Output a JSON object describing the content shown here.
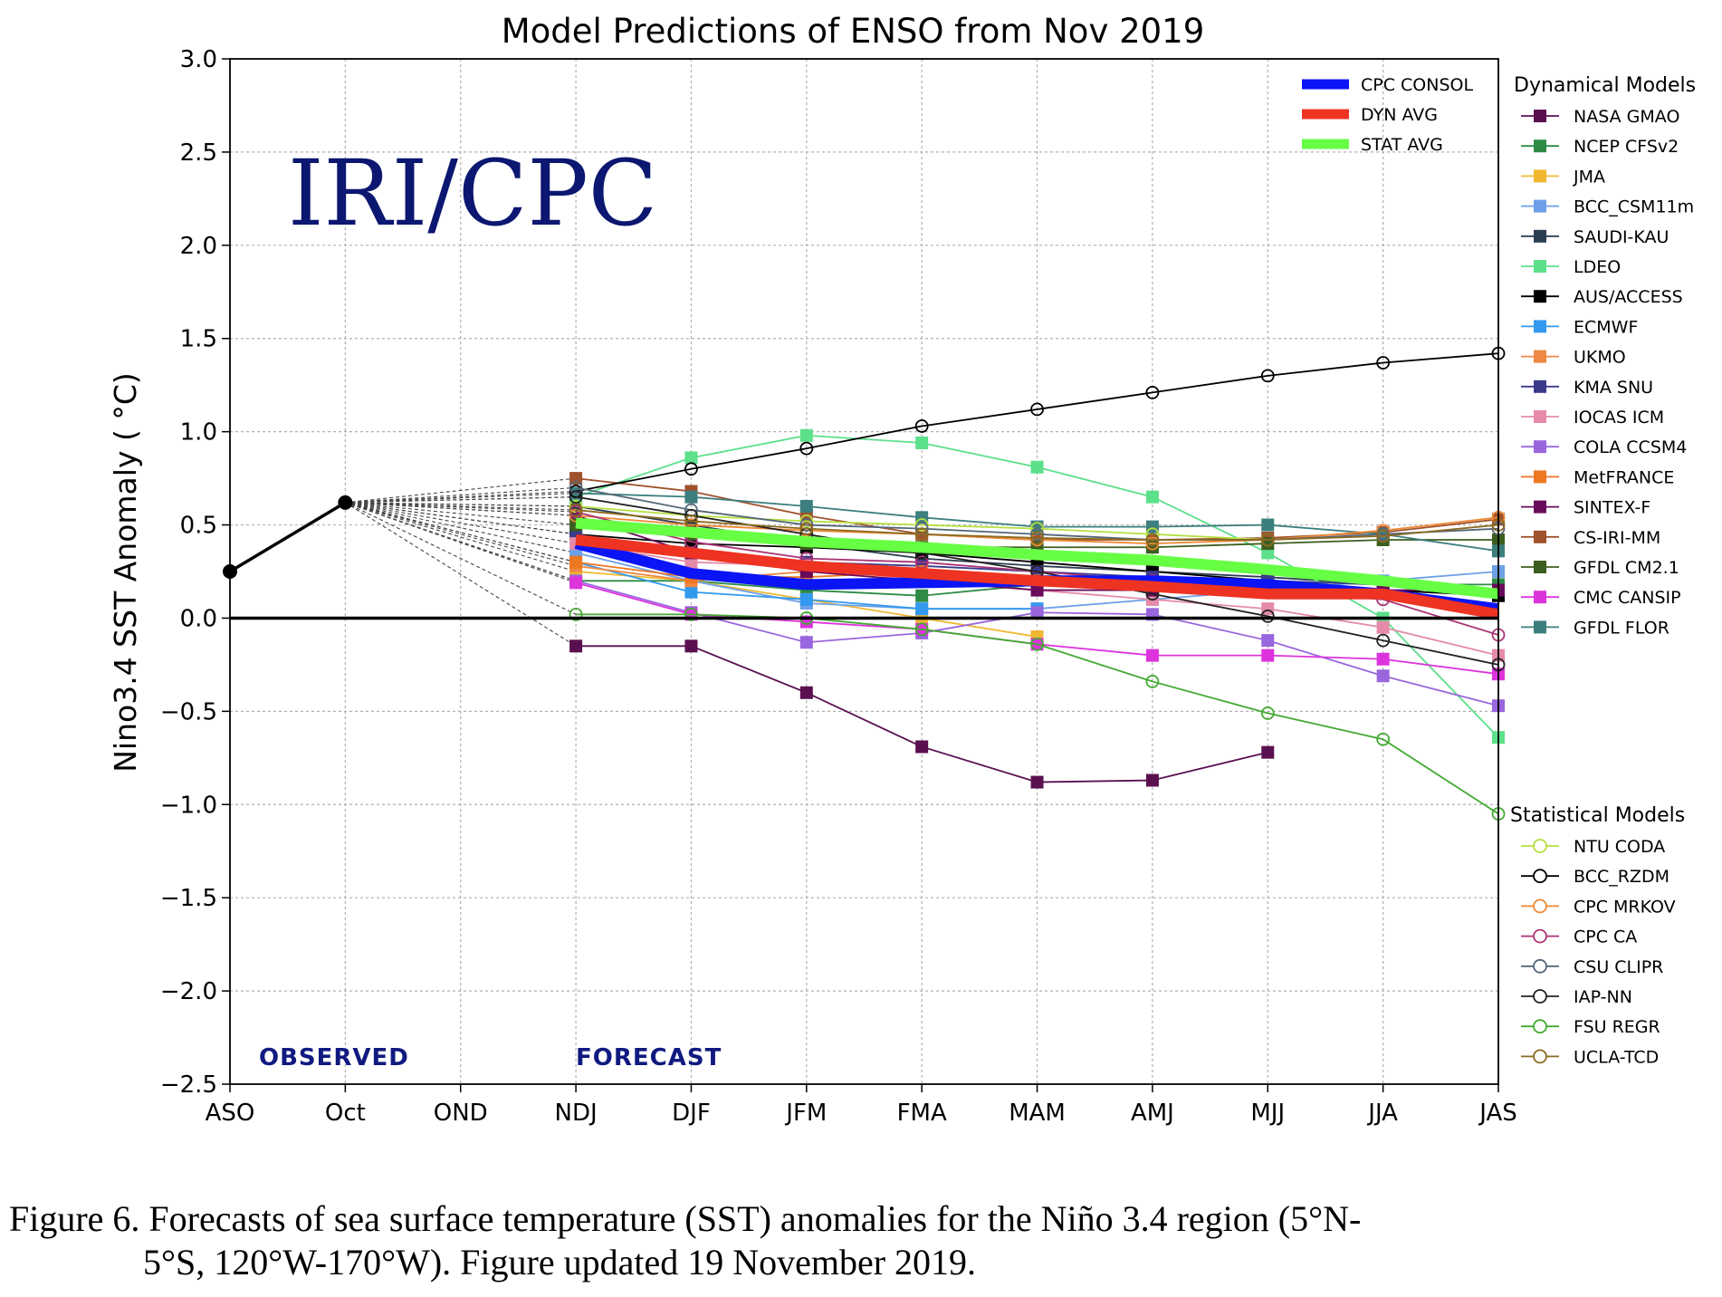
{
  "chart_data": {
    "type": "line",
    "title": "Model Predictions of ENSO from Nov 2019",
    "ylabel": "Nino3.4 SST Anomaly ( °C)",
    "xlabel": "",
    "categories": [
      "ASO",
      "Oct",
      "OND",
      "NDJ",
      "DJF",
      "JFM",
      "FMA",
      "MAM",
      "AMJ",
      "MJJ",
      "JJA",
      "JAS"
    ],
    "ylim": [
      -2.5,
      3.0
    ],
    "yticks": [
      "3.0",
      "2.5",
      "2.0",
      "1.5",
      "1.0",
      "0.5",
      "0.0",
      "−0.5",
      "−1.0",
      "−1.5",
      "−2.0",
      "−2.5"
    ],
    "grid": true,
    "zero_line": true,
    "badge": "IRI/CPC",
    "annotations": {
      "observed": "OBSERVED",
      "forecast": "FORECAST"
    },
    "observed": {
      "x": [
        "ASO",
        "Oct"
      ],
      "values": [
        0.25,
        0.62
      ],
      "color": "#000000"
    },
    "consensus": [
      {
        "name": "CPC CONSOL",
        "color": "#0a14f5",
        "values": [
          0.4,
          0.24,
          0.18,
          0.19,
          0.2,
          0.2,
          0.18,
          0.13,
          0.05
        ]
      },
      {
        "name": "DYN AVG",
        "color": "#ee3322",
        "values": [
          0.42,
          0.35,
          0.28,
          0.24,
          0.2,
          0.17,
          0.13,
          0.13,
          0.02
        ]
      },
      {
        "name": "STAT AVG",
        "color": "#66ff44",
        "values": [
          0.51,
          0.46,
          0.41,
          0.38,
          0.34,
          0.31,
          0.26,
          0.2,
          0.13
        ]
      }
    ],
    "dynamical_header": "Dynamical Models",
    "dynamical": [
      {
        "name": "NASA GMAO",
        "color": "#5a1050",
        "values": [
          -0.15,
          -0.15,
          -0.4,
          -0.69,
          -0.88,
          -0.87,
          -0.72,
          null,
          null
        ]
      },
      {
        "name": "NCEP CFSv2",
        "color": "#2e8b45",
        "values": [
          0.2,
          0.2,
          0.15,
          0.12,
          0.18,
          0.18,
          0.2,
          0.18,
          0.18
        ]
      },
      {
        "name": "JMA",
        "color": "#f0b830",
        "values": [
          0.25,
          0.2,
          0.1,
          0.0,
          -0.1,
          null,
          null,
          null,
          null
        ]
      },
      {
        "name": "BCC_CSM11m",
        "color": "#6da0e6",
        "values": [
          0.35,
          0.2,
          0.08,
          0.05,
          0.05,
          0.1,
          0.15,
          0.2,
          0.25
        ]
      },
      {
        "name": "SAUDI-KAU",
        "color": "#2c3e50",
        "values": [
          0.6,
          0.5,
          0.4,
          0.32,
          0.28,
          0.25,
          0.22,
          0.18,
          0.15
        ]
      },
      {
        "name": "LDEO",
        "color": "#5ce08a",
        "values": [
          0.65,
          0.86,
          0.98,
          0.94,
          0.81,
          0.65,
          0.35,
          0.0,
          -0.64
        ]
      },
      {
        "name": "AUS/ACCESS",
        "color": "#000000",
        "values": [
          0.45,
          0.4,
          0.38,
          0.35,
          0.3,
          0.25,
          0.2,
          0.15,
          0.12
        ]
      },
      {
        "name": "ECMWF",
        "color": "#3399ee",
        "values": [
          0.3,
          0.14,
          0.1,
          0.05,
          0.05,
          null,
          null,
          null,
          null
        ]
      },
      {
        "name": "UKMO",
        "color": "#ee8844",
        "values": [
          0.28,
          0.2,
          0.25,
          null,
          null,
          null,
          null,
          null,
          null
        ]
      },
      {
        "name": "KMA SNU",
        "color": "#3a3a8c",
        "values": [
          0.45,
          0.35,
          0.3,
          0.28,
          0.25,
          0.22,
          0.2,
          0.18,
          0.15
        ]
      },
      {
        "name": "IOCAS ICM",
        "color": "#e58aaa",
        "values": [
          0.4,
          0.3,
          0.28,
          0.2,
          0.15,
          0.1,
          0.05,
          -0.05,
          -0.2
        ]
      },
      {
        "name": "COLA CCSM4",
        "color": "#9966dd",
        "values": [
          0.2,
          0.03,
          -0.13,
          -0.08,
          0.03,
          0.02,
          -0.12,
          -0.31,
          -0.47
        ]
      },
      {
        "name": "MetFRANCE",
        "color": "#ee7722",
        "values": [
          0.3,
          0.22,
          0.22,
          0.25,
          0.2,
          null,
          null,
          null,
          null
        ]
      },
      {
        "name": "SINTEX-F",
        "color": "#6a0a5a",
        "values": [
          0.55,
          0.35,
          0.25,
          0.2,
          0.15,
          0.15,
          0.15,
          0.15,
          0.15
        ]
      },
      {
        "name": "CS-IRI-MM",
        "color": "#a0522d",
        "values": [
          0.75,
          0.68,
          0.55,
          0.45,
          0.42,
          0.42,
          0.43,
          0.46,
          0.53
        ]
      },
      {
        "name": "GFDL CM2.1",
        "color": "#3b5e1e",
        "values": [
          0.5,
          0.45,
          0.4,
          0.38,
          0.38,
          0.38,
          0.4,
          0.42,
          0.42
        ]
      },
      {
        "name": "CMC CANSIP",
        "color": "#dd33dd",
        "values": [
          0.19,
          0.02,
          -0.02,
          -0.06,
          -0.14,
          -0.2,
          -0.2,
          -0.22,
          -0.3
        ]
      },
      {
        "name": "GFDL FLOR",
        "color": "#3d7e7e",
        "values": [
          0.67,
          0.65,
          0.6,
          0.54,
          0.49,
          0.49,
          0.5,
          0.45,
          0.36
        ]
      }
    ],
    "statistical_header": "Statistical Models",
    "statistical": [
      {
        "name": "NTU CODA",
        "color": "#b5e040",
        "values": [
          0.6,
          0.55,
          0.52,
          0.5,
          0.48,
          0.45,
          0.42,
          null,
          null
        ]
      },
      {
        "name": "BCC_RZDM",
        "color": "#000000",
        "values": [
          0.68,
          0.8,
          0.91,
          1.03,
          1.12,
          1.21,
          1.3,
          1.37,
          1.42
        ]
      },
      {
        "name": "CPC MRKOV",
        "color": "#ee8833",
        "values": [
          0.55,
          0.5,
          0.47,
          0.45,
          0.42,
          0.4,
          0.42,
          0.47,
          0.54
        ]
      },
      {
        "name": "CPC CA",
        "color": "#aa3377",
        "values": [
          0.57,
          0.41,
          0.32,
          0.3,
          0.25,
          0.2,
          0.15,
          0.1,
          -0.09
        ]
      },
      {
        "name": "CSU CLIPR",
        "color": "#556677",
        "values": [
          0.7,
          0.58,
          0.5,
          0.48,
          0.45,
          0.42,
          0.42,
          0.45,
          0.48
        ]
      },
      {
        "name": "IAP-NN",
        "color": "#222222",
        "values": [
          0.65,
          0.55,
          0.45,
          0.35,
          0.25,
          0.13,
          0.01,
          -0.12,
          -0.25
        ]
      },
      {
        "name": "FSU REGR",
        "color": "#44aa33",
        "values": [
          0.02,
          0.02,
          0.0,
          -0.06,
          -0.14,
          -0.34,
          -0.51,
          -0.65,
          -1.05
        ]
      },
      {
        "name": "UCLA-TCD",
        "color": "#8b6a20",
        "values": [
          0.58,
          0.52,
          0.48,
          0.45,
          0.43,
          0.42,
          0.42,
          0.44,
          0.5
        ]
      }
    ]
  },
  "caption": {
    "line1": "Figure 6. Forecasts of sea surface temperature (SST) anomalies for the Niño 3.4 region (5°N-",
    "line2": "5°S, 120°W-170°W). Figure updated 19 November 2019."
  }
}
